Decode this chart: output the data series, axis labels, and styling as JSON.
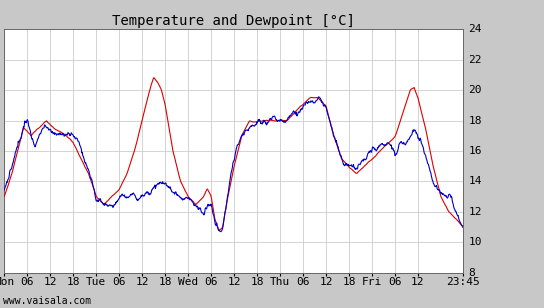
{
  "title": "Temperature and Dewpoint [°C]",
  "watermark": "www.vaisala.com",
  "xlim": [
    0,
    119.75
  ],
  "ylim": [
    8,
    24
  ],
  "yticks": [
    8,
    10,
    12,
    14,
    16,
    18,
    20,
    22,
    24
  ],
  "xtick_labels": [
    "Mon",
    "06",
    "12",
    "18",
    "Tue",
    "06",
    "12",
    "18",
    "Wed",
    "06",
    "12",
    "18",
    "Thu",
    "06",
    "12",
    "18",
    "Fri",
    "06",
    "12",
    "23:45"
  ],
  "xtick_positions": [
    0,
    6,
    12,
    18,
    24,
    30,
    36,
    42,
    48,
    54,
    60,
    66,
    72,
    78,
    84,
    90,
    96,
    102,
    108,
    119.75
  ],
  "grid_color": "#cccccc",
  "bg_color": "#c8c8c8",
  "plot_bg_color": "#ffffff",
  "temp_color": "#dd0000",
  "dewp_color": "#0000cc",
  "title_fontsize": 10,
  "tick_fontsize": 8,
  "watermark_fontsize": 7,
  "linewidth": 0.8
}
